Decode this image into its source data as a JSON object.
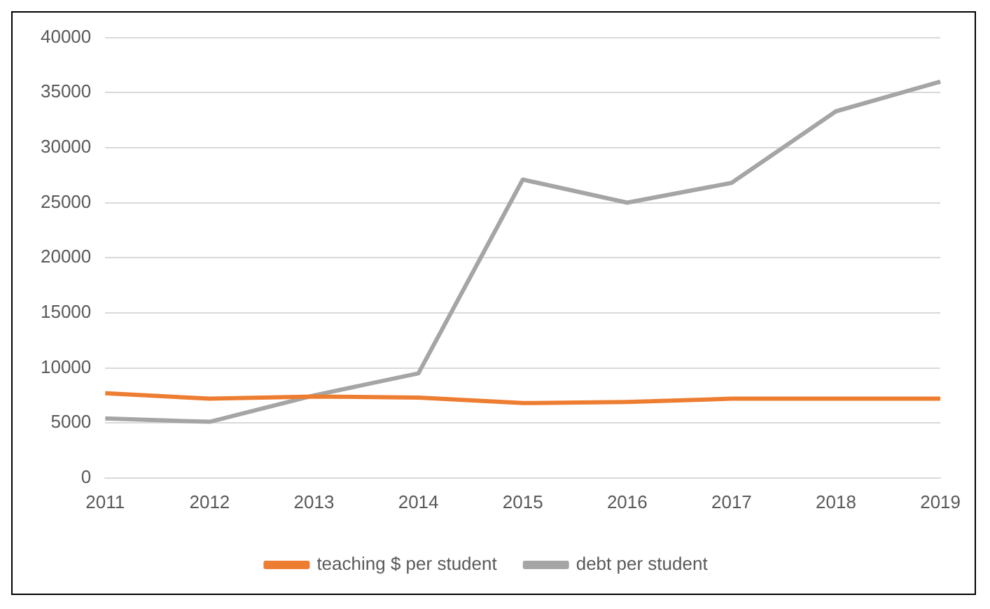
{
  "chart_data": {
    "type": "line",
    "categories": [
      "2011",
      "2012",
      "2013",
      "2014",
      "2015",
      "2016",
      "2017",
      "2018",
      "2019"
    ],
    "series": [
      {
        "name": "teaching $ per student",
        "color": "#ed7d31",
        "values": [
          7700,
          7200,
          7400,
          7300,
          6800,
          6900,
          7200,
          7200,
          7200
        ]
      },
      {
        "name": "debt per student",
        "color": "#a5a5a5",
        "values": [
          5400,
          5100,
          7500,
          9500,
          27100,
          25000,
          26800,
          33300,
          36000
        ]
      }
    ],
    "ylim": [
      0,
      40000
    ],
    "yticks": [
      0,
      5000,
      10000,
      15000,
      20000,
      25000,
      30000,
      35000,
      40000
    ],
    "grid": "y",
    "legend": "bottom",
    "marker": "none",
    "line_style": "solid"
  }
}
